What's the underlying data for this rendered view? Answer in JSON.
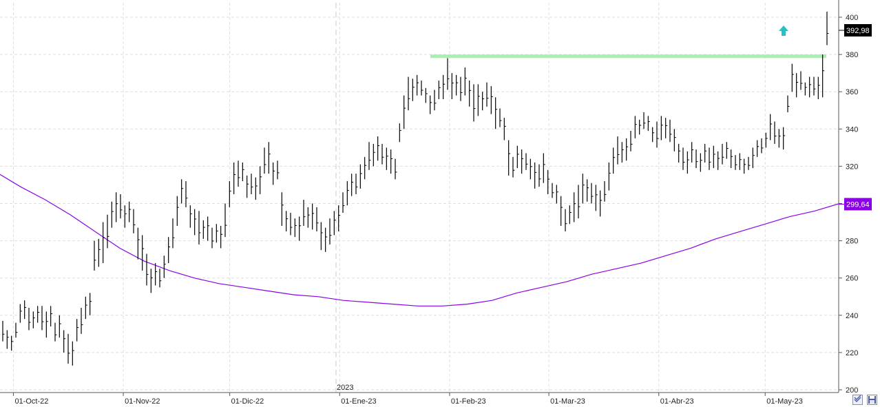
{
  "chart_data": {
    "type": "ohlc",
    "ylim": [
      200,
      410
    ],
    "y_ticks": [
      200,
      220,
      240,
      260,
      280,
      300,
      320,
      340,
      360,
      380,
      400
    ],
    "x_tick_labels": [
      "01-Oct-22",
      "01-Nov-22",
      "01-Dic-22",
      "01-Ene-23",
      "01-Feb-23",
      "01-Mar-23",
      "01-Abr-23",
      "01-May-23"
    ],
    "year_marker": "2023",
    "grid": true,
    "last_price_label": "392,98",
    "moving_average_label": "299,64",
    "resistance_level": 379,
    "colors": {
      "bars": "#000000",
      "moving_average": "#8a00e6",
      "resistance": "#a8f0b0",
      "arrow": "#2bbfc4",
      "last_price_badge": "#000000",
      "ma_badge": "#8a00e6"
    },
    "bars": [
      [
        237,
        226
      ],
      [
        232,
        222
      ],
      [
        229,
        221
      ],
      [
        236,
        228
      ],
      [
        246,
        236
      ],
      [
        248,
        238
      ],
      [
        244,
        232
      ],
      [
        242,
        233
      ],
      [
        245,
        236
      ],
      [
        245,
        232
      ],
      [
        242,
        228
      ],
      [
        245,
        234
      ],
      [
        236,
        226
      ],
      [
        240,
        228
      ],
      [
        232,
        220
      ],
      [
        230,
        214
      ],
      [
        226,
        213
      ],
      [
        238,
        226
      ],
      [
        244,
        230
      ],
      [
        250,
        238
      ],
      [
        252,
        240
      ],
      [
        280,
        264
      ],
      [
        281,
        266
      ],
      [
        290,
        268
      ],
      [
        294,
        276
      ],
      [
        301,
        287
      ],
      [
        306,
        290
      ],
      [
        305,
        292
      ],
      [
        299,
        287
      ],
      [
        301,
        290
      ],
      [
        297,
        284
      ],
      [
        287,
        270
      ],
      [
        283,
        264
      ],
      [
        273,
        256
      ],
      [
        265,
        252
      ],
      [
        268,
        256
      ],
      [
        265,
        255
      ],
      [
        272,
        260
      ],
      [
        282,
        268
      ],
      [
        292,
        276
      ],
      [
        304,
        288
      ],
      [
        313,
        300
      ],
      [
        312,
        298
      ],
      [
        299,
        287
      ],
      [
        297,
        283
      ],
      [
        296,
        278
      ],
      [
        291,
        281
      ],
      [
        293,
        280
      ],
      [
        287,
        276
      ],
      [
        289,
        279
      ],
      [
        288,
        276
      ],
      [
        300,
        282
      ],
      [
        312,
        298
      ],
      [
        322,
        305
      ],
      [
        323,
        309
      ],
      [
        322,
        312
      ],
      [
        315,
        303
      ],
      [
        316,
        305
      ],
      [
        314,
        302
      ],
      [
        320,
        305
      ],
      [
        330,
        316
      ],
      [
        333,
        316
      ],
      [
        322,
        310
      ],
      [
        323,
        313
      ],
      [
        306,
        288
      ],
      [
        296,
        285
      ],
      [
        295,
        283
      ],
      [
        292,
        282
      ],
      [
        293,
        280
      ],
      [
        302,
        288
      ],
      [
        298,
        287
      ],
      [
        300,
        286
      ],
      [
        298,
        285
      ],
      [
        290,
        275
      ],
      [
        287,
        274
      ],
      [
        292,
        278
      ],
      [
        296,
        283
      ],
      [
        299,
        285
      ],
      [
        306,
        295
      ],
      [
        312,
        299
      ],
      [
        316,
        304
      ],
      [
        316,
        305
      ],
      [
        321,
        308
      ],
      [
        325,
        313
      ],
      [
        333,
        318
      ],
      [
        332,
        320
      ],
      [
        336,
        323
      ],
      [
        332,
        321
      ],
      [
        330,
        318
      ],
      [
        329,
        316
      ],
      [
        324,
        313
      ],
      [
        343,
        333
      ],
      [
        358,
        340
      ],
      [
        368,
        350
      ],
      [
        367,
        355
      ],
      [
        369,
        358
      ],
      [
        366,
        358
      ],
      [
        362,
        354
      ],
      [
        358,
        348
      ],
      [
        361,
        350
      ],
      [
        366,
        356
      ],
      [
        369,
        356
      ],
      [
        378,
        361
      ],
      [
        370,
        356
      ],
      [
        369,
        358
      ],
      [
        368,
        355
      ],
      [
        373,
        358
      ],
      [
        366,
        352
      ],
      [
        364,
        344
      ],
      [
        364,
        347
      ],
      [
        360,
        350
      ],
      [
        365,
        352
      ],
      [
        363,
        348
      ],
      [
        357,
        340
      ],
      [
        351,
        341
      ],
      [
        346,
        334
      ],
      [
        334,
        315
      ],
      [
        325,
        314
      ],
      [
        331,
        319
      ],
      [
        329,
        316
      ],
      [
        327,
        318
      ],
      [
        324,
        313
      ],
      [
        322,
        308
      ],
      [
        321,
        309
      ],
      [
        327,
        311
      ],
      [
        318,
        305
      ],
      [
        311,
        303
      ],
      [
        310,
        300
      ],
      [
        304,
        288
      ],
      [
        297,
        285
      ],
      [
        299,
        289
      ],
      [
        306,
        290
      ],
      [
        310,
        292
      ],
      [
        316,
        300
      ],
      [
        313,
        301
      ],
      [
        311,
        300
      ],
      [
        310,
        296
      ],
      [
        307,
        293
      ],
      [
        312,
        301
      ],
      [
        322,
        307
      ],
      [
        330,
        316
      ],
      [
        336,
        321
      ],
      [
        333,
        322
      ],
      [
        335,
        323
      ],
      [
        339,
        328
      ],
      [
        347,
        335
      ],
      [
        345,
        337
      ],
      [
        349,
        340
      ],
      [
        347,
        339
      ],
      [
        341,
        333
      ],
      [
        344,
        330
      ],
      [
        347,
        334
      ],
      [
        346,
        335
      ],
      [
        345,
        333
      ],
      [
        340,
        328
      ],
      [
        332,
        322
      ],
      [
        330,
        318
      ],
      [
        328,
        316
      ],
      [
        333,
        322
      ],
      [
        329,
        319
      ],
      [
        327,
        317
      ],
      [
        332,
        322
      ],
      [
        330,
        318
      ],
      [
        331,
        319
      ],
      [
        328,
        318
      ],
      [
        332,
        321
      ],
      [
        333,
        324
      ],
      [
        329,
        319
      ],
      [
        326,
        318
      ],
      [
        327,
        318
      ],
      [
        324,
        316
      ],
      [
        325,
        318
      ],
      [
        330,
        319
      ],
      [
        334,
        325
      ],
      [
        335,
        327
      ],
      [
        338,
        330
      ],
      [
        348,
        334
      ],
      [
        344,
        332
      ],
      [
        340,
        330
      ],
      [
        341,
        329
      ],
      [
        358,
        349
      ],
      [
        375,
        360
      ],
      [
        370,
        357
      ],
      [
        371,
        361
      ],
      [
        365,
        358
      ],
      [
        368,
        357
      ],
      [
        368,
        358
      ],
      [
        368,
        356
      ],
      [
        380,
        357
      ],
      [
        403,
        385
      ]
    ],
    "moving_average": [
      [
        317,
        "2022-09-26"
      ],
      [
        309,
        "2022-10-03"
      ],
      [
        302,
        "2022-10-10"
      ],
      [
        294,
        "2022-10-17"
      ],
      [
        285,
        "2022-10-24"
      ],
      [
        276,
        "2022-10-31"
      ],
      [
        269,
        "2022-11-07"
      ],
      [
        264,
        "2022-11-14"
      ],
      [
        260,
        "2022-11-21"
      ],
      [
        257,
        "2022-11-28"
      ],
      [
        255,
        "2022-12-05"
      ],
      [
        253,
        "2022-12-12"
      ],
      [
        251,
        "2022-12-19"
      ],
      [
        250,
        "2022-12-26"
      ],
      [
        248,
        "2023-01-02"
      ],
      [
        247,
        "2023-01-09"
      ],
      [
        246,
        "2023-01-16"
      ],
      [
        245,
        "2023-01-23"
      ],
      [
        245,
        "2023-01-30"
      ],
      [
        246,
        "2023-02-06"
      ],
      [
        248,
        "2023-02-13"
      ],
      [
        252,
        "2023-02-20"
      ],
      [
        255,
        "2023-02-27"
      ],
      [
        258,
        "2023-03-06"
      ],
      [
        262,
        "2023-03-13"
      ],
      [
        265,
        "2023-03-20"
      ],
      [
        268,
        "2023-03-27"
      ],
      [
        272,
        "2023-04-03"
      ],
      [
        276,
        "2023-04-10"
      ],
      [
        281,
        "2023-04-17"
      ],
      [
        285,
        "2023-04-24"
      ],
      [
        289,
        "2023-05-01"
      ],
      [
        293,
        "2023-05-08"
      ],
      [
        296,
        "2023-05-15"
      ],
      [
        300,
        "2023-05-22"
      ]
    ]
  }
}
